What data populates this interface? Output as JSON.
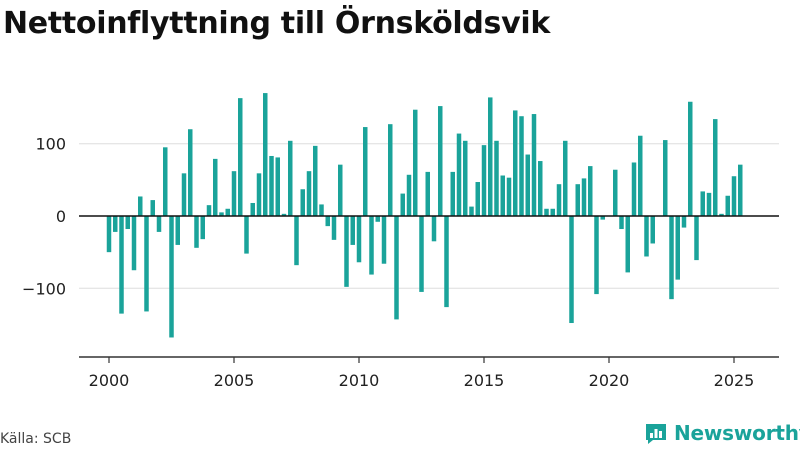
{
  "title": "Nettoinflyttning till Örnsköldsvik",
  "source": "Källa: SCB",
  "brand": {
    "name": "Newsworthy",
    "icon": "newsworthy-logo-icon"
  },
  "colors": {
    "bar": "#1aa39a",
    "grid": "#dddddd",
    "axis": "#333333",
    "text": "#222222"
  },
  "chart_data": {
    "type": "bar",
    "title": "Nettoinflyttning till Örnsköldsvik",
    "xlabel": "",
    "ylabel": "",
    "x_start": 2000,
    "x_step": 0.25,
    "xlim": [
      1998.8,
      2026.8
    ],
    "ylim": [
      -195,
      195
    ],
    "x_ticks": [
      2000,
      2005,
      2010,
      2015,
      2020,
      2025
    ],
    "x_tick_labels": [
      "2000",
      "2005",
      "2010",
      "2015",
      "2020",
      "2025"
    ],
    "y_ticks": [
      -100,
      0,
      100
    ],
    "y_tick_labels": [
      "−100",
      "0",
      "100"
    ],
    "grid": "horizontal",
    "legend": "none",
    "values": [
      -50,
      -22,
      -135,
      -18,
      -75,
      27,
      -132,
      22,
      -22,
      95,
      -168,
      -40,
      59,
      120,
      -44,
      -32,
      15,
      79,
      5,
      10,
      62,
      163,
      -52,
      18,
      59,
      170,
      83,
      81,
      3,
      104,
      -68,
      37,
      62,
      97,
      16,
      -14,
      -33,
      71,
      -98,
      -40,
      -64,
      123,
      -81,
      -8,
      -66,
      127,
      -143,
      31,
      57,
      147,
      -105,
      61,
      -35,
      152,
      -126,
      61,
      114,
      104,
      13,
      47,
      98,
      164,
      104,
      56,
      53,
      146,
      138,
      85,
      141,
      76,
      10,
      10,
      44,
      104,
      -148,
      44,
      52,
      69,
      -108,
      -5,
      0,
      64,
      -18,
      -78,
      74,
      111,
      -56,
      -38,
      0,
      105,
      -115,
      -88,
      -16,
      158,
      -61,
      34,
      32,
      134,
      3,
      28,
      55,
      71
    ]
  }
}
